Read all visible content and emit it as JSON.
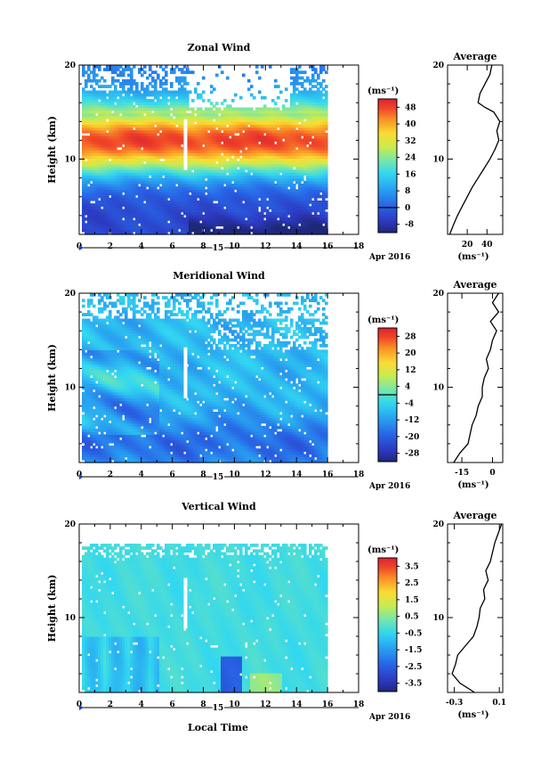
{
  "chart_data": [
    {
      "type": "heatmap",
      "title": "Zonal Wind",
      "ylabel": "Height (km)",
      "x_ticks": [
        "0",
        "2",
        "4",
        "6",
        "8",
        "10",
        "12",
        "14",
        "16",
        "18"
      ],
      "xlim": [
        0,
        18
      ],
      "y_ticks": [
        "10",
        "20"
      ],
      "ylim": [
        2,
        20
      ],
      "data_x_range": [
        0,
        16
      ],
      "date_day": "15",
      "date_label": "Apr 2016",
      "colorbar": {
        "unit": "(ms⁻¹)",
        "labels": [
          "48",
          "40",
          "32",
          "24",
          "16",
          "8",
          "0",
          "-8"
        ],
        "range": [
          -12,
          52
        ],
        "contour_level": 0
      },
      "profile": {
        "title": "Average",
        "x_ticks": [
          "20",
          "40"
        ],
        "xlim": [
          0,
          56
        ],
        "x_unit": "(ms⁻¹)",
        "y_ticks": [
          "10",
          "20"
        ],
        "ylim": [
          2,
          20
        ],
        "points": [
          [
            2.2,
            2
          ],
          [
            6,
            3
          ],
          [
            10,
            4
          ],
          [
            15,
            5
          ],
          [
            20,
            6
          ],
          [
            25,
            7
          ],
          [
            31,
            8
          ],
          [
            37,
            9
          ],
          [
            43,
            10
          ],
          [
            48,
            11
          ],
          [
            52,
            12
          ],
          [
            50,
            13
          ],
          [
            53,
            14
          ],
          [
            47,
            15
          ],
          [
            38,
            15.5
          ],
          [
            31,
            16
          ],
          [
            33,
            17
          ],
          [
            38,
            18
          ],
          [
            43,
            19
          ],
          [
            45,
            20
          ]
        ]
      }
    },
    {
      "type": "heatmap",
      "title": "Meridional Wind",
      "ylabel": "Height (km)",
      "x_ticks": [
        "0",
        "2",
        "4",
        "6",
        "8",
        "10",
        "12",
        "14",
        "16",
        "18"
      ],
      "xlim": [
        0,
        18
      ],
      "y_ticks": [
        "10",
        "20"
      ],
      "ylim": [
        2,
        20
      ],
      "data_x_range": [
        0,
        16
      ],
      "date_day": "15",
      "date_label": "Apr 2016",
      "colorbar": {
        "unit": "(ms⁻¹)",
        "labels": [
          "28",
          "20",
          "12",
          "4",
          "-4",
          "-12",
          "-20",
          "-28"
        ],
        "range": [
          -32,
          32
        ],
        "contour_level": 0
      },
      "profile": {
        "title": "Average",
        "x_ticks": [
          "-15",
          "0"
        ],
        "xlim": [
          -22,
          5
        ],
        "x_unit": "(ms⁻¹)",
        "y_ticks": [
          "10",
          "20"
        ],
        "ylim": [
          2,
          20
        ],
        "points": [
          [
            -19,
            2
          ],
          [
            -16,
            3
          ],
          [
            -12,
            4
          ],
          [
            -11,
            5
          ],
          [
            -10,
            6
          ],
          [
            -8,
            7
          ],
          [
            -7,
            8
          ],
          [
            -5,
            9
          ],
          [
            -5,
            10
          ],
          [
            -4,
            11
          ],
          [
            -2,
            12
          ],
          [
            -3,
            13
          ],
          [
            -1,
            14
          ],
          [
            0,
            15
          ],
          [
            2,
            16
          ],
          [
            -1,
            17
          ],
          [
            3,
            18
          ],
          [
            0,
            19
          ],
          [
            3,
            20
          ]
        ]
      }
    },
    {
      "type": "heatmap",
      "title": "Vertical Wind",
      "ylabel": "Height (km)",
      "xlabel": "Local Time",
      "x_ticks": [
        "0",
        "2",
        "4",
        "6",
        "8",
        "10",
        "12",
        "14",
        "16",
        "18"
      ],
      "xlim": [
        0,
        18
      ],
      "y_ticks": [
        "10",
        "20"
      ],
      "ylim": [
        2,
        20
      ],
      "data_x_range": [
        0,
        16
      ],
      "date_day": "15",
      "date_label": "Apr 2016",
      "colorbar": {
        "unit": "(ms⁻¹)",
        "labels": [
          "3.5",
          "2.5",
          "1.5",
          "0.5",
          "-0.5",
          "-1.5",
          "-2.5",
          "-3.5"
        ],
        "range": [
          -4,
          4
        ]
      },
      "profile": {
        "title": "Average",
        "x_ticks": [
          "-0.3",
          "0.1"
        ],
        "xlim": [
          -0.36,
          0.13
        ],
        "x_unit": "(ms⁻¹)",
        "y_ticks": [
          "10",
          "20"
        ],
        "ylim": [
          2,
          20
        ],
        "points": [
          [
            -0.12,
            2
          ],
          [
            -0.25,
            3
          ],
          [
            -0.32,
            4
          ],
          [
            -0.29,
            5
          ],
          [
            -0.27,
            6
          ],
          [
            -0.2,
            7
          ],
          [
            -0.13,
            8
          ],
          [
            -0.1,
            9
          ],
          [
            -0.08,
            10
          ],
          [
            -0.07,
            11
          ],
          [
            -0.03,
            12
          ],
          [
            -0.04,
            13
          ],
          [
            0,
            14
          ],
          [
            -0.02,
            15
          ],
          [
            0.02,
            16
          ],
          [
            0.04,
            17
          ],
          [
            0.06,
            18
          ],
          [
            0.09,
            19
          ],
          [
            0.12,
            20
          ]
        ]
      }
    }
  ]
}
